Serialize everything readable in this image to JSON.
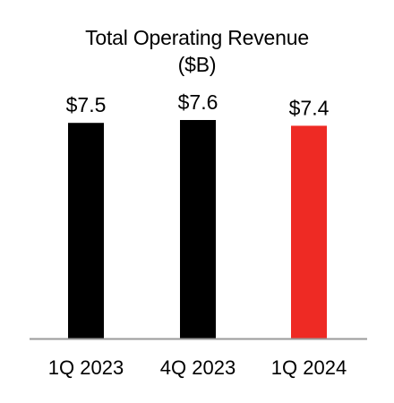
{
  "chart_data": {
    "type": "bar",
    "title": "Total Operating Revenue",
    "subtitle": "($B)",
    "categories": [
      "1Q 2023",
      "4Q 2023",
      "1Q 2024"
    ],
    "values": [
      7.5,
      7.6,
      7.4
    ],
    "data_labels": [
      "$7.5",
      "$7.6",
      "$7.4"
    ],
    "bar_colors": [
      "#000000",
      "#000000",
      "#ee2a24"
    ],
    "axis_color": "#9a9a9a",
    "grid": false,
    "legend": "none",
    "xlabel": "",
    "ylabel": ""
  }
}
